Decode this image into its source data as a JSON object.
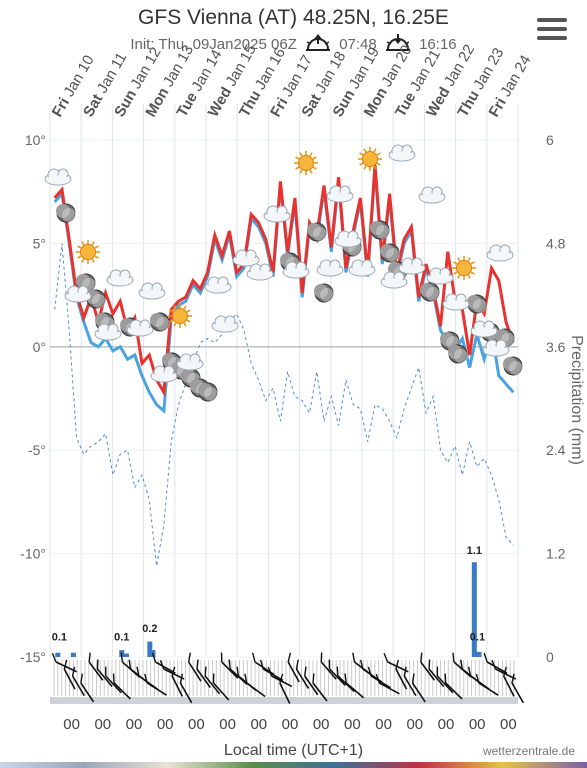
{
  "header": {
    "title": "GFS Vienna (AT) 48.25N, 16.25E",
    "init": "Init: Thu, 09Jan2025 06Z",
    "sunrise": "07:48",
    "sunset": "16:16"
  },
  "footer": {
    "xlabel": "Local time (UTC+1)",
    "credit": "wetterzentrale.de"
  },
  "chart_data": {
    "type": "line",
    "title": "GFS Vienna (AT) 48.25N, 16.25E",
    "xlabel": "Local time (UTC+1)",
    "ylabel_left": "",
    "ylabel_right": "Precipitation (mm)",
    "ylim_left": [
      -15,
      10
    ],
    "ylim_right": [
      0,
      6
    ],
    "left_tick_labels": [
      "10°",
      "5°",
      "0°",
      "-5°",
      "-10°",
      "-15°"
    ],
    "right_tick_labels": [
      "6",
      "4.8",
      "3.6",
      "2.4",
      "1.2",
      "0"
    ],
    "day_labels": [
      {
        "dow": "Fri",
        "date": "Jan 10"
      },
      {
        "dow": "Sat",
        "date": "Jan 11"
      },
      {
        "dow": "Sun",
        "date": "Jan 12"
      },
      {
        "dow": "Mon",
        "date": "Jan 13"
      },
      {
        "dow": "Tue",
        "date": "Jan 14"
      },
      {
        "dow": "Wed",
        "date": "Jan 15"
      },
      {
        "dow": "Thu",
        "date": "Jan 16"
      },
      {
        "dow": "Fri",
        "date": "Jan 17"
      },
      {
        "dow": "Sat",
        "date": "Jan 18"
      },
      {
        "dow": "Sun",
        "date": "Jan 19"
      },
      {
        "dow": "Mon",
        "date": "Jan 20"
      },
      {
        "dow": "Tue",
        "date": "Jan 21"
      },
      {
        "dow": "Wed",
        "date": "Jan 22"
      },
      {
        "dow": "Thu",
        "date": "Jan 23"
      },
      {
        "dow": "Fri",
        "date": "Jan 24"
      }
    ],
    "x_tick_labels": [
      "00",
      "00",
      "00",
      "00",
      "00",
      "00",
      "00",
      "00",
      "00",
      "00",
      "00",
      "00",
      "00",
      "00",
      "00"
    ],
    "x_days": 15,
    "grid": true,
    "zero_line": true,
    "temperature_max": [
      7.2,
      7.6,
      5.2,
      2.6,
      1.4,
      2.4,
      1.2,
      2.6,
      1.6,
      2.2,
      0.8,
      1.4,
      -0.8,
      -0.4,
      -1.6,
      -2.2,
      1.8,
      2.2,
      2.4,
      3.2,
      2.8,
      3.6,
      5.4,
      4.4,
      5.6,
      3.6,
      4.0,
      6.4,
      6.0,
      5.2,
      3.6,
      8.0,
      4.6,
      7.2,
      2.6,
      6.0,
      5.4,
      7.8,
      4.8,
      8.2,
      3.8,
      5.6,
      7.2,
      3.6,
      8.8,
      4.2,
      7.4,
      3.6,
      5.2,
      5.8,
      2.4,
      4.0,
      2.8,
      1.0,
      4.6,
      2.2,
      1.8,
      -0.4,
      2.2,
      1.6,
      3.8,
      3.2,
      1.2,
      0.2
    ],
    "temperature_min": [
      7.0,
      7.4,
      5.0,
      2.4,
      1.2,
      0.2,
      0.0,
      0.4,
      -0.2,
      0.0,
      -0.6,
      -0.4,
      -1.4,
      -2.2,
      -2.8,
      -3.1,
      1.4,
      2.0,
      2.2,
      3.0,
      2.6,
      3.4,
      5.2,
      4.2,
      5.4,
      3.4,
      3.8,
      6.2,
      5.8,
      5.0,
      3.4,
      7.8,
      4.4,
      7.0,
      2.4,
      5.8,
      5.2,
      7.6,
      4.6,
      8.0,
      3.6,
      5.4,
      7.0,
      3.4,
      8.6,
      4.0,
      7.2,
      3.4,
      5.0,
      5.6,
      2.2,
      3.8,
      2.6,
      0.8,
      0.2,
      -0.2,
      0.4,
      -1.0,
      0.6,
      -0.6,
      0.8,
      -1.4,
      -1.8,
      -2.2
    ],
    "dewpoint": [
      1.8,
      5.0,
      0.8,
      -4.4,
      -5.2,
      -4.8,
      -4.6,
      -4.2,
      -6.2,
      -5.2,
      -5.0,
      -6.8,
      -6.2,
      -7.4,
      -10.6,
      -8.6,
      -4.6,
      -2.8,
      -1.8,
      -0.8,
      0.2,
      0.4,
      0.2,
      0.6,
      1.2,
      1.6,
      0.8,
      -0.8,
      -1.6,
      -2.6,
      -2.0,
      -3.6,
      -1.2,
      -2.4,
      -2.6,
      -3.2,
      -1.2,
      -3.6,
      -2.4,
      -3.8,
      -1.6,
      -2.8,
      -3.0,
      -4.6,
      -2.8,
      -3.0,
      -3.6,
      -4.4,
      -3.0,
      -2.0,
      -1.0,
      -3.2,
      -2.4,
      -5.0,
      -5.6,
      -4.8,
      -6.2,
      -4.6,
      -5.8,
      -5.4,
      -6.2,
      -7.4,
      -9.2,
      -9.6
    ],
    "precip_labels": [
      {
        "day": 0.3,
        "value": 0.1
      },
      {
        "day": 2.3,
        "value": 0.1
      },
      {
        "day": 3.2,
        "value": 0.2
      },
      {
        "day": 13.6,
        "value": 1.1
      },
      {
        "day": 13.7,
        "value": 0.1
      }
    ],
    "precipitation": [
      {
        "day": 0.25,
        "value": 0.05
      },
      {
        "day": 0.75,
        "value": 0.05
      },
      {
        "day": 2.3,
        "value": 0.08
      },
      {
        "day": 2.45,
        "value": 0.04
      },
      {
        "day": 3.2,
        "value": 0.18
      },
      {
        "day": 3.3,
        "value": 0.08
      },
      {
        "day": 13.6,
        "value": 1.1
      },
      {
        "day": 13.75,
        "value": 0.06
      }
    ]
  }
}
